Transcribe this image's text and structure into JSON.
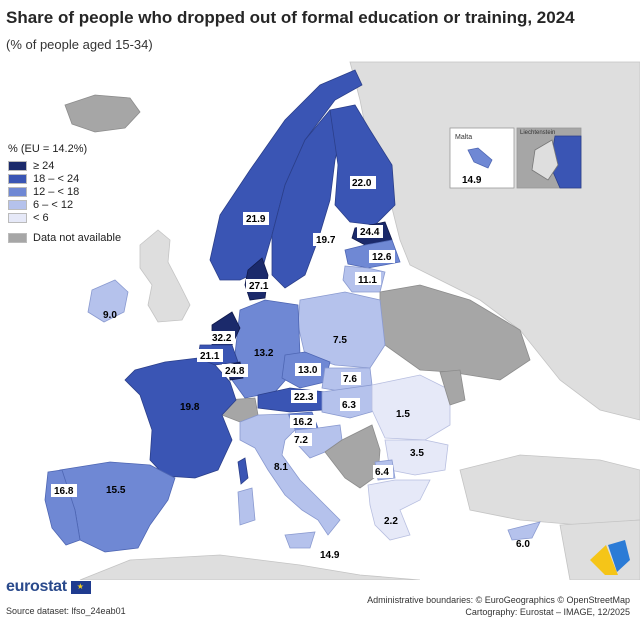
{
  "title": "Share of people who dropped out of formal education or training, 2024",
  "subtitle": "(% of people aged 15-34)",
  "legend": {
    "title": "% (EU = 14.2%)",
    "classes": [
      {
        "label": "≥ 24",
        "color": "#1b2a6b"
      },
      {
        "label": "18 – < 24",
        "color": "#3a55b4"
      },
      {
        "label": "12 – < 18",
        "color": "#6f88d4"
      },
      {
        "label": "6 – < 12",
        "color": "#b5c2ec"
      },
      {
        "label": "< 6",
        "color": "#e6e9f8"
      }
    ],
    "na": {
      "label": "Data not available",
      "color": "#a6a6a6"
    }
  },
  "insets": {
    "malta": {
      "name": "Malta",
      "value": "14.9"
    },
    "liechtenstein": {
      "name": "Liechtenstein"
    }
  },
  "values": {
    "finland": "22.0",
    "sweden": "19.7",
    "norway": "21.9",
    "estonia": "24.4",
    "latvia": "12.6",
    "lithuania": "11.1",
    "denmark": "27.1",
    "ireland": "9.0",
    "netherlands": "32.2",
    "belgium": "21.1",
    "luxembourg": "24.8",
    "germany": "13.2",
    "poland": "7.5",
    "czechia": "13.0",
    "slovakia": "7.6",
    "austria": "22.3",
    "hungary": "6.3",
    "slovenia": "16.2",
    "croatia": "7.2",
    "romania": "1.5",
    "bulgaria": "3.5",
    "north_macedonia": "6.4",
    "greece": "2.2",
    "france": "19.8",
    "spain": "15.5",
    "portugal": "16.8",
    "italy": "8.1",
    "cyprus": "6.0",
    "malta": "14.9"
  },
  "footer": {
    "brand": "eurostat",
    "source": "Source dataset: lfso_24eab01",
    "boundaries": "Administrative boundaries: © EuroGeographics © OpenStreetMap",
    "cartography": "Cartography: Eurostat – IMAGE, 12/2025"
  }
}
